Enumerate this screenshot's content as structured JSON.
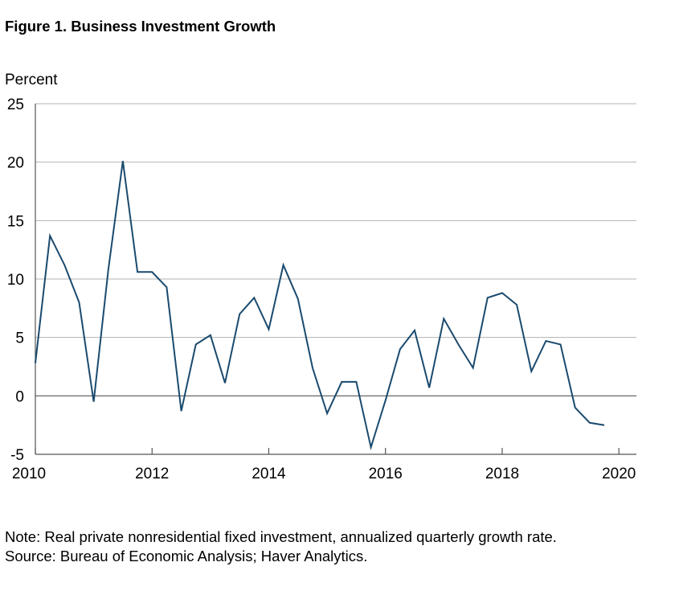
{
  "figure": {
    "title": "Figure 1. Business Investment Growth",
    "note": "Note: Real private nonresidential fixed investment, annualized quarterly growth rate.",
    "source": "Source: Bureau of Economic Analysis; Haver Analytics."
  },
  "chart_data": {
    "type": "line",
    "title": "Figure 1. Business Investment Growth",
    "xlabel": "",
    "ylabel": "Percent",
    "xlim": [
      2010,
      2020.3
    ],
    "ylim": [
      -5,
      25
    ],
    "x_ticks": [
      2010,
      2012,
      2014,
      2016,
      2018,
      2020
    ],
    "y_ticks": [
      -5,
      0,
      5,
      10,
      15,
      20,
      25
    ],
    "grid": "horizontal",
    "zero_line": true,
    "legend": "none",
    "line_color": "#1a4a6e",
    "series": [
      {
        "x": [
          2010.0,
          2010.25,
          2010.5,
          2010.75,
          2011.0,
          2011.25,
          2011.5,
          2011.75,
          2012.0,
          2012.25,
          2012.5,
          2012.75,
          2013.0,
          2013.25,
          2013.5,
          2013.75,
          2014.0,
          2014.25,
          2014.5,
          2014.75,
          2015.0,
          2015.25,
          2015.5,
          2015.75,
          2016.0,
          2016.25,
          2016.5,
          2016.75,
          2017.0,
          2017.25,
          2017.5,
          2017.75,
          2018.0,
          2018.25,
          2018.5,
          2018.75,
          2019.0,
          2019.25,
          2019.5,
          2019.75
        ],
        "values": [
          2.8,
          13.7,
          11.2,
          8.0,
          -0.5,
          10.8,
          20.1,
          10.6,
          10.6,
          9.3,
          -1.3,
          4.4,
          5.2,
          1.1,
          7.0,
          8.4,
          5.7,
          11.2,
          8.3,
          2.4,
          -1.5,
          1.2,
          1.2,
          -4.4,
          -0.4,
          4.0,
          5.6,
          0.7,
          6.6,
          4.4,
          2.4,
          8.4,
          8.8,
          7.8,
          2.1,
          4.7,
          4.4,
          -1.0,
          -2.3,
          -2.5
        ]
      }
    ]
  }
}
